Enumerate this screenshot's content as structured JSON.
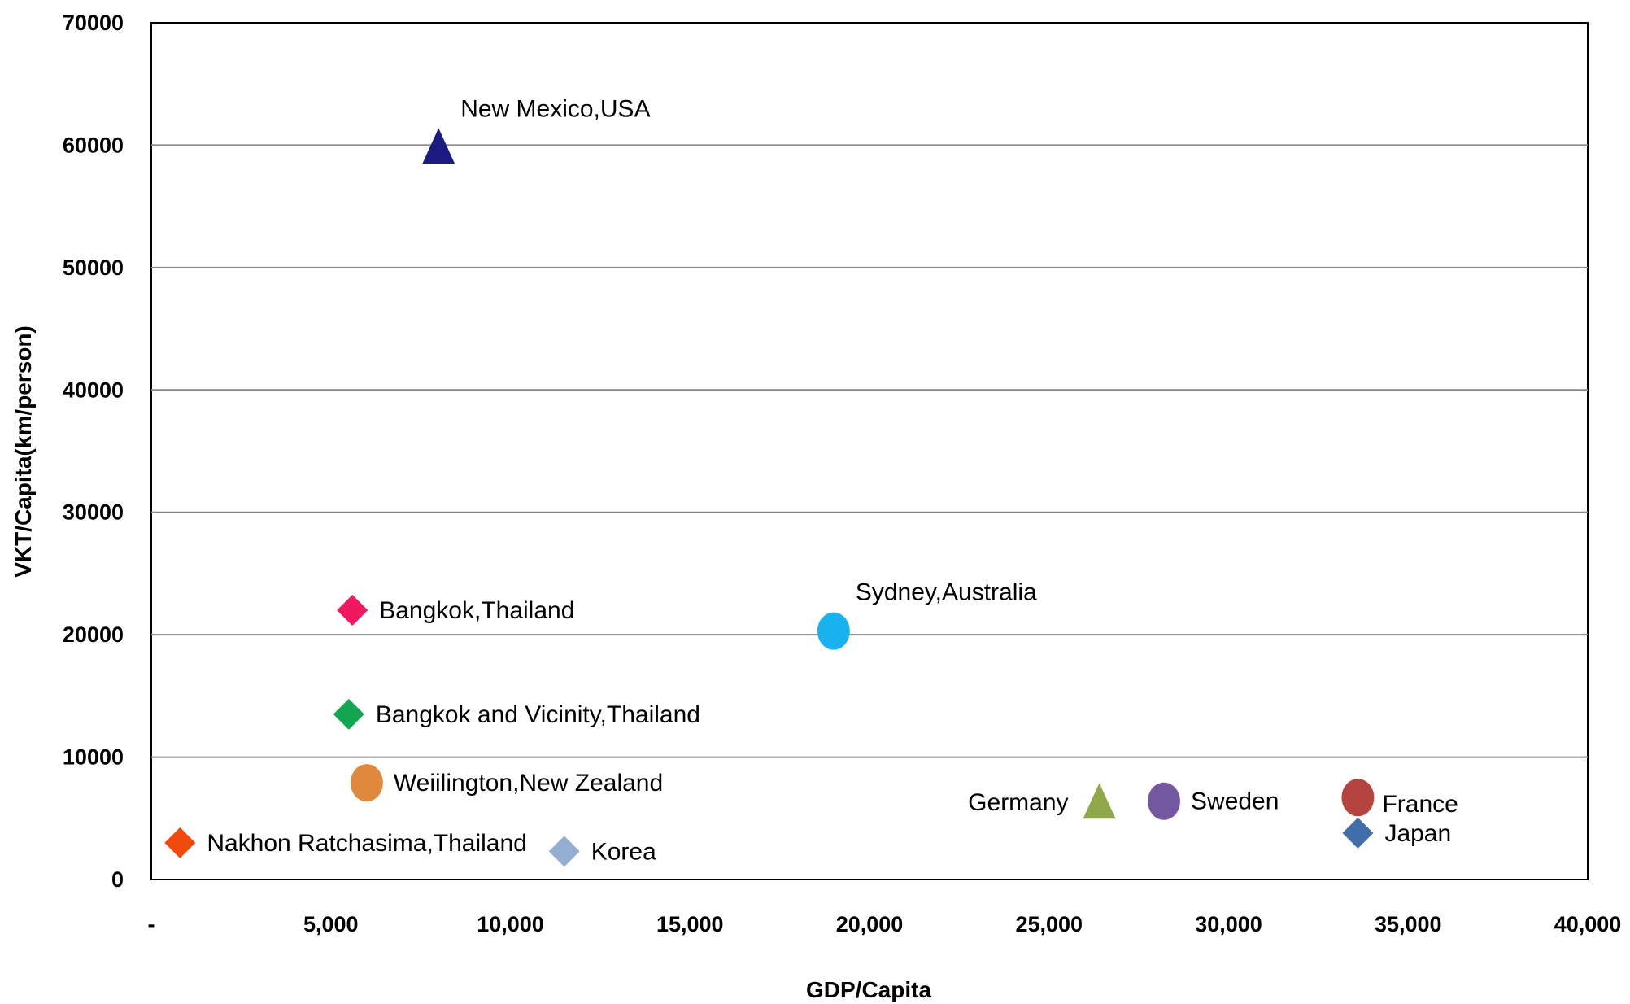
{
  "chart_data": {
    "type": "scatter",
    "title": "",
    "xlabel": "GDP/Capita",
    "ylabel": "VKT/Capita(km/person)",
    "xlim": [
      0,
      40000
    ],
    "ylim": [
      0,
      70000
    ],
    "x_ticks": [
      0,
      5000,
      10000,
      15000,
      20000,
      25000,
      30000,
      35000,
      40000
    ],
    "x_tick_labels": [
      "-",
      "5,000",
      "10,000",
      "15,000",
      "20,000",
      "25,000",
      "30,000",
      "35,000",
      "40,000"
    ],
    "y_ticks": [
      0,
      10000,
      20000,
      30000,
      40000,
      50000,
      60000,
      70000
    ],
    "y_tick_labels": [
      "0",
      "10000",
      "20000",
      "30000",
      "40000",
      "50000",
      "60000",
      "70000"
    ],
    "grid": "horizontal",
    "points": [
      {
        "label": "New Mexico,USA",
        "x": 8000,
        "y": 59800,
        "marker": "triangle",
        "color": "#1a1a80",
        "label_side": "above-right"
      },
      {
        "label": "Bangkok,Thailand",
        "x": 5600,
        "y": 22000,
        "marker": "diamond",
        "color": "#f0185f",
        "label_side": "right"
      },
      {
        "label": "Sydney,Australia",
        "x": 19000,
        "y": 20300,
        "marker": "circle",
        "color": "#19b2ef",
        "label_side": "above-right"
      },
      {
        "label": "Bangkok and Vicinity,Thailand",
        "x": 5500,
        "y": 13500,
        "marker": "diamond",
        "color": "#12a651",
        "label_side": "right"
      },
      {
        "label": "Weiilington,New Zealand",
        "x": 6000,
        "y": 7900,
        "marker": "circle",
        "color": "#e0883c",
        "label_side": "right"
      },
      {
        "label": "Nakhon Ratchasima,Thailand",
        "x": 800,
        "y": 3000,
        "marker": "diamond",
        "color": "#f24a0c",
        "label_side": "right"
      },
      {
        "label": "Korea",
        "x": 11500,
        "y": 2300,
        "marker": "diamond",
        "color": "#94aed2",
        "label_side": "right"
      },
      {
        "label": "Germany",
        "x": 26400,
        "y": 6300,
        "marker": "triangle",
        "color": "#8fa84a",
        "label_side": "left"
      },
      {
        "label": "Sweden",
        "x": 28200,
        "y": 6400,
        "marker": "circle",
        "color": "#7358a0",
        "label_side": "right"
      },
      {
        "label": "France",
        "x": 33600,
        "y": 6700,
        "marker": "circle",
        "color": "#b5433f",
        "label_side": "below-right"
      },
      {
        "label": "Japan",
        "x": 33600,
        "y": 3800,
        "marker": "diamond",
        "color": "#3f6ea8",
        "label_side": "right"
      }
    ]
  }
}
